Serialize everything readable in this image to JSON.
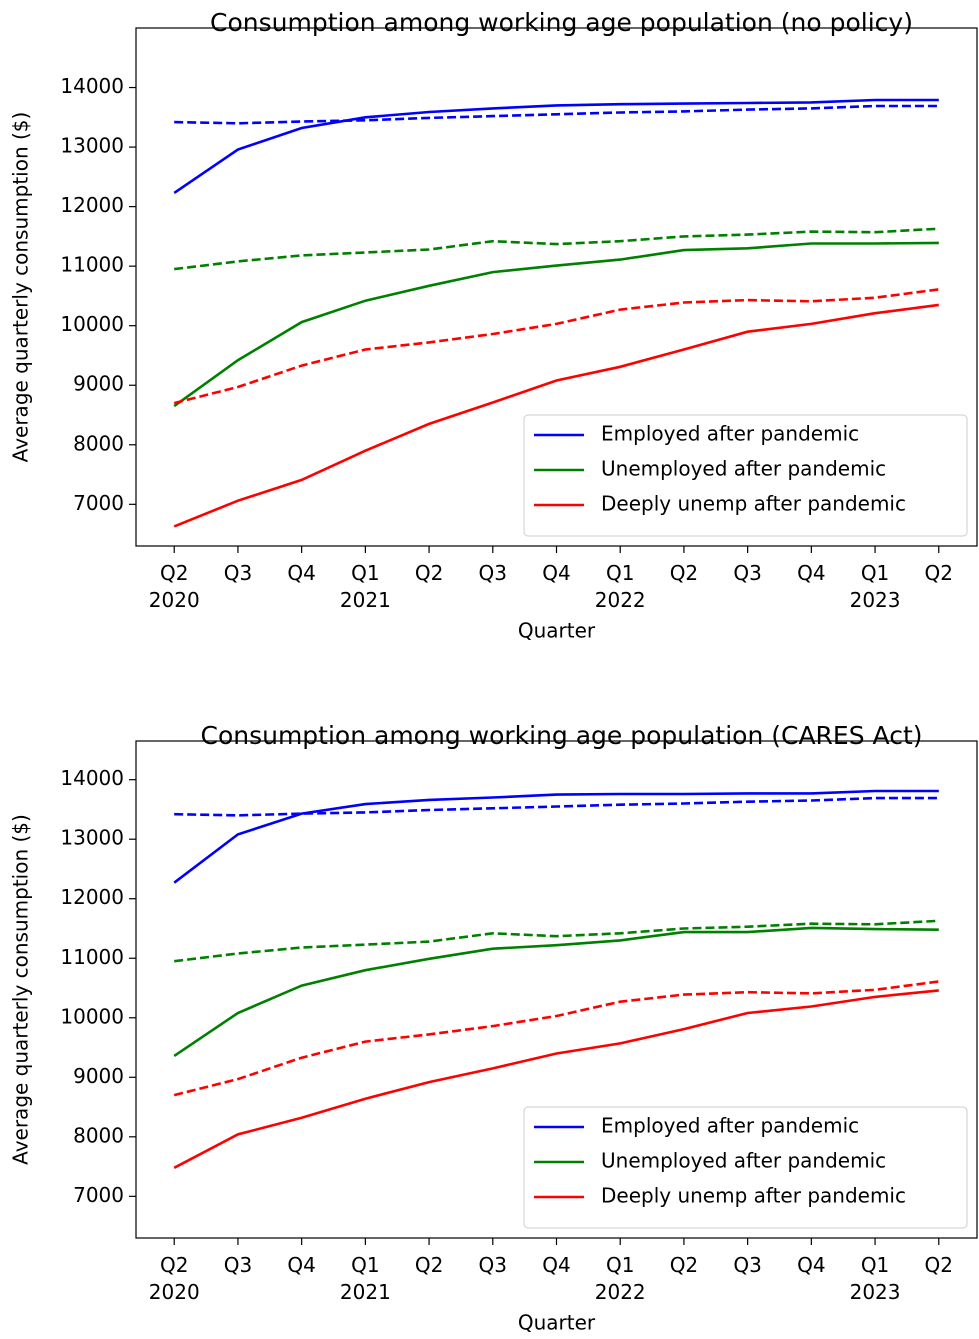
{
  "chart_data": [
    {
      "type": "line",
      "title": "Consumption among working age population (no policy)",
      "xlabel": "Quarter",
      "ylabel": "Average quarterly consumption ($)",
      "categories": [
        "Q2\n2020",
        "Q3",
        "Q4",
        "Q1\n2021",
        "Q2",
        "Q3",
        "Q4",
        "Q1\n2022",
        "Q2",
        "Q3",
        "Q4",
        "Q1\n2023",
        "Q2"
      ],
      "ylim": [
        6300,
        15000
      ],
      "yticks": [
        7000,
        8000,
        9000,
        10000,
        11000,
        12000,
        13000,
        14000
      ],
      "legend": "lower right",
      "series": [
        {
          "name": "Employed after pandemic",
          "color": "#0000ff",
          "linestyle": "solid",
          "values": [
            12230,
            12960,
            13320,
            13500,
            13590,
            13650,
            13700,
            13720,
            13730,
            13740,
            13750,
            13790,
            13790
          ]
        },
        {
          "name": "Unemployed after pandemic",
          "color": "#008000",
          "linestyle": "solid",
          "values": [
            8650,
            9420,
            10060,
            10420,
            10670,
            10900,
            11010,
            11110,
            11270,
            11300,
            11380,
            11380,
            11390
          ]
        },
        {
          "name": "Deeply unemp after pandemic",
          "color": "#ff0000",
          "linestyle": "solid",
          "values": [
            6630,
            7060,
            7410,
            7900,
            8350,
            8710,
            9080,
            9310,
            9600,
            9900,
            10030,
            10210,
            10350
          ]
        },
        {
          "color": "#0000ff",
          "linestyle": "dashed",
          "values": [
            13420,
            13400,
            13430,
            13450,
            13490,
            13520,
            13550,
            13580,
            13600,
            13630,
            13650,
            13690,
            13690
          ]
        },
        {
          "color": "#008000",
          "linestyle": "dashed",
          "values": [
            10950,
            11080,
            11180,
            11230,
            11280,
            11420,
            11370,
            11420,
            11500,
            11530,
            11580,
            11570,
            11630
          ]
        },
        {
          "color": "#ff0000",
          "linestyle": "dashed",
          "values": [
            8700,
            8970,
            9330,
            9600,
            9720,
            9860,
            10030,
            10270,
            10390,
            10430,
            10410,
            10470,
            10610
          ]
        }
      ]
    },
    {
      "type": "line",
      "title": "Consumption among working age population (CARES Act)",
      "xlabel": "Quarter",
      "ylabel": "Average quarterly consumption ($)",
      "categories": [
        "Q2\n2020",
        "Q3",
        "Q4",
        "Q1\n2021",
        "Q2",
        "Q3",
        "Q4",
        "Q1\n2022",
        "Q2",
        "Q3",
        "Q4",
        "Q1\n2023",
        "Q2"
      ],
      "ylim": [
        6300,
        14650
      ],
      "yticks": [
        7000,
        8000,
        9000,
        10000,
        11000,
        12000,
        13000,
        14000
      ],
      "legend": "lower right",
      "series": [
        {
          "name": "Employed after pandemic",
          "color": "#0000ff",
          "linestyle": "solid",
          "values": [
            12270,
            13080,
            13430,
            13590,
            13660,
            13700,
            13750,
            13760,
            13760,
            13770,
            13770,
            13810,
            13810
          ]
        },
        {
          "name": "Unemployed after pandemic",
          "color": "#008000",
          "linestyle": "solid",
          "values": [
            9360,
            10080,
            10540,
            10800,
            10990,
            11160,
            11220,
            11300,
            11440,
            11440,
            11510,
            11490,
            11480
          ]
        },
        {
          "name": "Deeply unemp after pandemic",
          "color": "#ff0000",
          "linestyle": "solid",
          "values": [
            7480,
            8040,
            8320,
            8640,
            8920,
            9150,
            9400,
            9570,
            9810,
            10080,
            10190,
            10350,
            10460
          ]
        },
        {
          "color": "#0000ff",
          "linestyle": "dashed",
          "values": [
            13420,
            13400,
            13430,
            13450,
            13490,
            13520,
            13550,
            13580,
            13600,
            13630,
            13650,
            13690,
            13690
          ]
        },
        {
          "color": "#008000",
          "linestyle": "dashed",
          "values": [
            10950,
            11080,
            11180,
            11230,
            11280,
            11420,
            11370,
            11420,
            11500,
            11530,
            11580,
            11570,
            11630
          ]
        },
        {
          "color": "#ff0000",
          "linestyle": "dashed",
          "values": [
            8700,
            8970,
            9330,
            9600,
            9720,
            9860,
            10030,
            10270,
            10390,
            10430,
            10410,
            10470,
            10610
          ]
        }
      ]
    }
  ]
}
